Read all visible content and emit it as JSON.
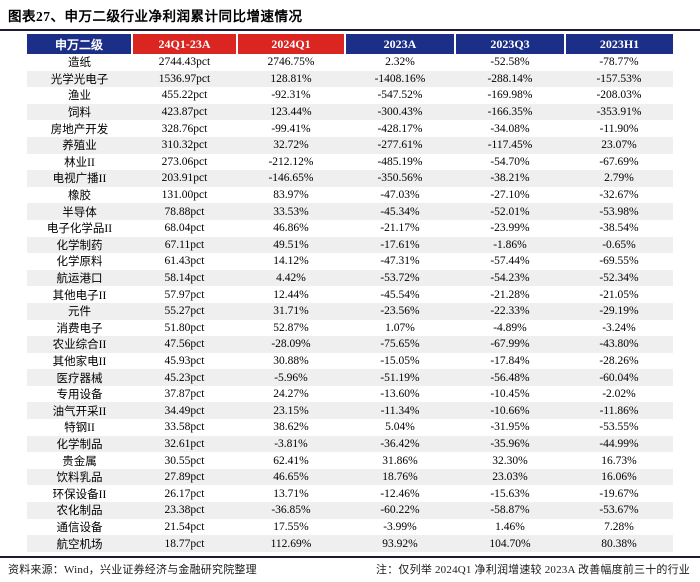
{
  "title": "图表27、申万二级行业净利润累计同比增速情况",
  "colors": {
    "header-blue": "#1b2f88",
    "header-red": "#db2521",
    "zebra": "#efefef",
    "rule": "#1c1c3a"
  },
  "table": {
    "columns": [
      {
        "label": "申万二级",
        "style": "blue"
      },
      {
        "label": "24Q1-23A",
        "style": "red"
      },
      {
        "label": "2024Q1",
        "style": "red"
      },
      {
        "label": "2023A",
        "style": "blue"
      },
      {
        "label": "2023Q3",
        "style": "blue"
      },
      {
        "label": "2023H1",
        "style": "blue"
      }
    ],
    "rows": [
      [
        "造纸",
        "2744.43pct",
        "2746.75%",
        "2.32%",
        "-52.58%",
        "-78.77%"
      ],
      [
        "光学光电子",
        "1536.97pct",
        "128.81%",
        "-1408.16%",
        "-288.14%",
        "-157.53%"
      ],
      [
        "渔业",
        "455.22pct",
        "-92.31%",
        "-547.52%",
        "-169.98%",
        "-208.03%"
      ],
      [
        "饲料",
        "423.87pct",
        "123.44%",
        "-300.43%",
        "-166.35%",
        "-353.91%"
      ],
      [
        "房地产开发",
        "328.76pct",
        "-99.41%",
        "-428.17%",
        "-34.08%",
        "-11.90%"
      ],
      [
        "养殖业",
        "310.32pct",
        "32.72%",
        "-277.61%",
        "-117.45%",
        "23.07%"
      ],
      [
        "林业II",
        "273.06pct",
        "-212.12%",
        "-485.19%",
        "-54.70%",
        "-67.69%"
      ],
      [
        "电视广播II",
        "203.91pct",
        "-146.65%",
        "-350.56%",
        "-38.21%",
        "2.79%"
      ],
      [
        "橡胶",
        "131.00pct",
        "83.97%",
        "-47.03%",
        "-27.10%",
        "-32.67%"
      ],
      [
        "半导体",
        "78.88pct",
        "33.53%",
        "-45.34%",
        "-52.01%",
        "-53.98%"
      ],
      [
        "电子化学品II",
        "68.04pct",
        "46.86%",
        "-21.17%",
        "-23.99%",
        "-38.54%"
      ],
      [
        "化学制药",
        "67.11pct",
        "49.51%",
        "-17.61%",
        "-1.86%",
        "-0.65%"
      ],
      [
        "化学原料",
        "61.43pct",
        "14.12%",
        "-47.31%",
        "-57.44%",
        "-69.55%"
      ],
      [
        "航运港口",
        "58.14pct",
        "4.42%",
        "-53.72%",
        "-54.23%",
        "-52.34%"
      ],
      [
        "其他电子II",
        "57.97pct",
        "12.44%",
        "-45.54%",
        "-21.28%",
        "-21.05%"
      ],
      [
        "元件",
        "55.27pct",
        "31.71%",
        "-23.56%",
        "-22.33%",
        "-29.19%"
      ],
      [
        "消费电子",
        "51.80pct",
        "52.87%",
        "1.07%",
        "-4.89%",
        "-3.24%"
      ],
      [
        "农业综合II",
        "47.56pct",
        "-28.09%",
        "-75.65%",
        "-67.99%",
        "-43.80%"
      ],
      [
        "其他家电II",
        "45.93pct",
        "30.88%",
        "-15.05%",
        "-17.84%",
        "-28.26%"
      ],
      [
        "医疗器械",
        "45.23pct",
        "-5.96%",
        "-51.19%",
        "-56.48%",
        "-60.04%"
      ],
      [
        "专用设备",
        "37.87pct",
        "24.27%",
        "-13.60%",
        "-10.45%",
        "-2.02%"
      ],
      [
        "油气开采II",
        "34.49pct",
        "23.15%",
        "-11.34%",
        "-10.66%",
        "-11.86%"
      ],
      [
        "特钢II",
        "33.58pct",
        "38.62%",
        "5.04%",
        "-31.95%",
        "-53.55%"
      ],
      [
        "化学制品",
        "32.61pct",
        "-3.81%",
        "-36.42%",
        "-35.96%",
        "-44.99%"
      ],
      [
        "贵金属",
        "30.55pct",
        "62.41%",
        "31.86%",
        "32.30%",
        "16.73%"
      ],
      [
        "饮料乳品",
        "27.89pct",
        "46.65%",
        "18.76%",
        "23.03%",
        "16.06%"
      ],
      [
        "环保设备II",
        "26.17pct",
        "13.71%",
        "-12.46%",
        "-15.63%",
        "-19.67%"
      ],
      [
        "农化制品",
        "23.38pct",
        "-36.85%",
        "-60.22%",
        "-58.87%",
        "-53.67%"
      ],
      [
        "通信设备",
        "21.54pct",
        "17.55%",
        "-3.99%",
        "1.46%",
        "7.28%"
      ],
      [
        "航空机场",
        "18.77pct",
        "112.69%",
        "93.92%",
        "104.70%",
        "80.38%"
      ]
    ]
  },
  "footer": {
    "source": "资料来源：Wind，兴业证券经济与金融研究院整理",
    "note": "注：仅列举 2024Q1 净利润增速较 2023A 改善幅度前三十的行业"
  }
}
